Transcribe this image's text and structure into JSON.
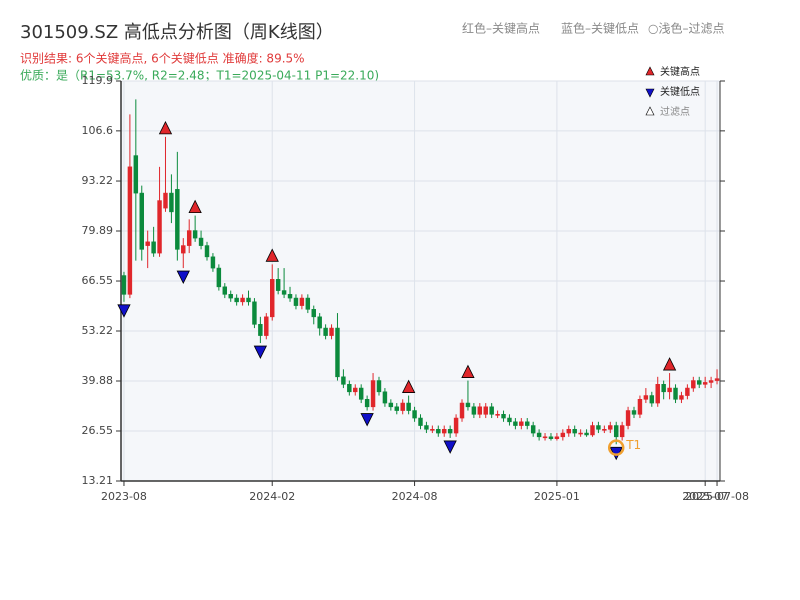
{
  "chart_data": {
    "type": "candlestick",
    "title": "301509.SZ 高低点分析图（周K线图）",
    "subtitle": "识别结果: 6个关键高点, 6个关键低点  准确度: 89.5%",
    "quality": "优质：是（R1=53.7%, R2=2.48；T1=2025-04-11 P1=22.10)",
    "top_legend": [
      "红色–关键高点",
      "蓝色–关键低点",
      "○浅色–过滤点"
    ],
    "legend": [
      "关键高点",
      "关键低点",
      "过滤点"
    ],
    "up_color": "#e0262b",
    "down_color": "#0b8a3c",
    "high_color": "#e0262b",
    "low_color": "#1010c8",
    "open": [
      68,
      63,
      100,
      90,
      76,
      77,
      74,
      86,
      90,
      91,
      74,
      76,
      80,
      78,
      76,
      73,
      70,
      65,
      63,
      62,
      61,
      62,
      61,
      55,
      52,
      57,
      67,
      64,
      63,
      62,
      60,
      62,
      59,
      57,
      54,
      52,
      54,
      41,
      39,
      37,
      38,
      35,
      33,
      40,
      37,
      34,
      33,
      32,
      34,
      32,
      30,
      28,
      27,
      27,
      26,
      27,
      26,
      30,
      34,
      33,
      31,
      31,
      33,
      31,
      31,
      30,
      29,
      28,
      29,
      28,
      26,
      25,
      25,
      24.5,
      25,
      26,
      27,
      26,
      26,
      25.5,
      28,
      27,
      27,
      28,
      25,
      28,
      32,
      31,
      35,
      36,
      34,
      39,
      37,
      38,
      35,
      36,
      38,
      40,
      39,
      39.5,
      40
    ],
    "high": [
      69,
      111,
      115,
      92,
      80,
      81,
      97,
      105,
      95,
      101,
      78,
      83,
      84,
      80,
      77,
      74,
      71,
      66,
      64,
      63,
      63,
      64,
      62,
      57,
      58,
      71,
      70,
      70,
      65,
      63,
      63,
      63,
      60,
      58,
      55,
      55,
      58,
      43,
      40,
      39,
      39,
      36,
      42,
      41,
      38,
      35,
      34,
      35,
      36,
      33,
      31,
      29,
      28,
      28,
      28,
      28,
      31,
      35,
      40,
      34,
      34,
      34,
      34,
      32,
      32,
      31,
      30,
      30,
      30,
      29,
      27,
      26,
      26,
      26,
      27,
      28,
      28,
      27,
      27,
      29,
      29,
      28,
      29,
      29,
      29,
      33,
      33,
      36,
      38,
      37,
      41,
      40,
      42,
      39,
      37,
      39,
      41,
      41,
      41,
      41,
      43
    ],
    "low": [
      61,
      62,
      72,
      72,
      70,
      73,
      73,
      85,
      82,
      72,
      70,
      74,
      77,
      75,
      72,
      69,
      64,
      62,
      61,
      60,
      60,
      60,
      54,
      50,
      51,
      56,
      63,
      62,
      61,
      59,
      59,
      58,
      55,
      52,
      51,
      51,
      40,
      38,
      36,
      36,
      34,
      32,
      32,
      36,
      33,
      32,
      31,
      31,
      31,
      29,
      27,
      26,
      26,
      25,
      25,
      24.7,
      25,
      29,
      32,
      30,
      30,
      30,
      30,
      30,
      29,
      28,
      27,
      27,
      27,
      25,
      24,
      24,
      24,
      24,
      24,
      25,
      25,
      25,
      25,
      25,
      26,
      26,
      26,
      23,
      24,
      27,
      30,
      30,
      34,
      33,
      33,
      35,
      35,
      34,
      34,
      35,
      37,
      38,
      38,
      38,
      39
    ],
    "close": [
      63,
      97,
      90,
      75,
      77,
      74,
      88,
      90,
      85,
      75,
      76,
      80,
      78,
      76,
      73,
      70,
      65,
      63,
      62,
      61,
      62,
      61,
      55,
      52,
      57,
      67,
      64,
      63,
      62,
      60,
      62,
      59,
      57,
      54,
      52,
      54,
      41,
      39,
      37,
      38,
      35,
      33,
      40,
      37,
      34,
      33,
      32,
      34,
      32,
      30,
      28,
      27,
      27,
      26,
      27,
      26,
      30,
      34,
      33,
      31,
      33,
      33,
      31,
      31,
      30,
      29,
      28,
      29,
      28,
      26,
      25,
      25,
      24.5,
      25,
      26,
      27,
      26,
      26,
      25.5,
      28,
      27,
      27,
      28,
      25,
      28,
      32,
      31,
      35,
      36,
      34,
      39,
      37,
      38,
      35,
      36,
      38,
      40,
      39,
      39.5,
      40,
      40.5
    ],
    "key_highs": {
      "x": [
        7,
        12,
        25,
        48,
        58,
        92
      ],
      "values": [
        105,
        84,
        71,
        36,
        40,
        42
      ]
    },
    "key_lows": {
      "x": [
        0,
        10,
        23,
        41,
        55,
        83
      ],
      "values": [
        61,
        70,
        50,
        32,
        24.7,
        23
      ]
    },
    "t1": {
      "x": 83,
      "value": 22.1,
      "label": "T1"
    },
    "xlim": [
      -0.5,
      100.5
    ],
    "xticks": [
      {
        "value": 0,
        "label": "2023-08"
      },
      {
        "value": 25,
        "label": "2024-02"
      },
      {
        "value": 49,
        "label": "2024-08"
      },
      {
        "value": 73,
        "label": "2025-01"
      },
      {
        "value": 98,
        "label": "2025-07"
      },
      {
        "value": 100,
        "label": "2025-07-08"
      }
    ],
    "ylim": [
      13.21,
      119.9
    ],
    "yticks": [
      13.21,
      26.55,
      39.88,
      53.22,
      66.55,
      79.89,
      93.22,
      106.6,
      119.9
    ],
    "grid": true
  }
}
